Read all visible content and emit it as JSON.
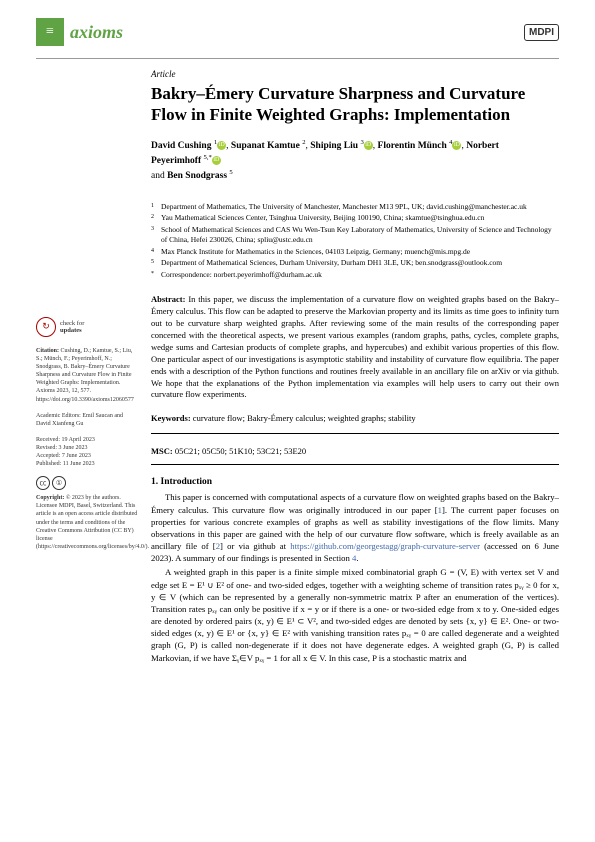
{
  "journal": {
    "name": "axioms",
    "publisher_logo": "MDPI"
  },
  "article_type": "Article",
  "title": "Bakry–Émery Curvature Sharpness and Curvature Flow in Finite Weighted Graphs: Implementation",
  "authors": [
    {
      "name": "David Cushing",
      "sup": "1",
      "orcid": true
    },
    {
      "name": "Supanat Kamtue",
      "sup": "2",
      "orcid": false
    },
    {
      "name": "Shiping Liu",
      "sup": "3",
      "orcid": true
    },
    {
      "name": "Florentin Münch",
      "sup": "4",
      "orcid": true
    },
    {
      "name": "Norbert Peyerimhoff",
      "sup": "5,*",
      "orcid": true
    },
    {
      "name": "Ben Snodgrass",
      "sup": "5",
      "orcid": false
    }
  ],
  "author_and": "and",
  "affiliations": [
    {
      "num": "1",
      "text": "Department of Mathematics, The University of Manchester, Manchester M13 9PL, UK; david.cushing@manchester.ac.uk"
    },
    {
      "num": "2",
      "text": "Yau Mathematical Sciences Center, Tsinghua University, Beijing 100190, China; skamtue@tsinghua.edu.cn"
    },
    {
      "num": "3",
      "text": "School of Mathematical Sciences and CAS Wu Wen-Tsun Key Laboratory of Mathematics, University of Science and Technology of China, Hefei 230026, China; spliu@ustc.edu.cn"
    },
    {
      "num": "4",
      "text": "Max Planck Institute for Mathematics in the Sciences, 04103 Leipzig, Germany; muench@mis.mpg.de"
    },
    {
      "num": "5",
      "text": "Department of Mathematical Sciences, Durham University, Durham DH1 3LE, UK; ben.snodgrass@outlook.com"
    },
    {
      "num": "*",
      "text": "Correspondence: norbert.peyerimhoff@durham.ac.uk"
    }
  ],
  "abstract": {
    "label": "Abstract:",
    "text": "In this paper, we discuss the implementation of a curvature flow on weighted graphs based on the Bakry–Émery calculus. This flow can be adapted to preserve the Markovian property and its limits as time goes to infinity turn out to be curvature sharp weighted graphs. After reviewing some of the main results of the corresponding paper concerned with the theoretical aspects, we present various examples (random graphs, paths, cycles, complete graphs, wedge sums and Cartesian products of complete graphs, and hypercubes) and exhibit various properties of this flow. One particular aspect of our investigations is asymptotic stability and instability of curvature flow equilibria. The paper ends with a description of the Python functions and routines freely available in an ancillary file on arXiv or via github. We hope that the explanations of the Python implementation via examples will help users to carry out their own curvature flow experiments."
  },
  "keywords": {
    "label": "Keywords:",
    "text": "curvature flow; Bakry-Émery calculus; weighted graphs; stability"
  },
  "msc": {
    "label": "MSC:",
    "text": "05C21; 05C50; 51K10; 53C21; 53E20"
  },
  "section1": {
    "title": "1. Introduction",
    "para1_a": "This paper is concerned with computational aspects of a curvature flow on weighted graphs based on the Bakry–Émery calculus. This curvature flow was originally introduced in our paper [",
    "para1_ref1": "1",
    "para1_b": "]. The current paper focuses on properties for various concrete examples of graphs as well as stability investigations of the flow limits. Many observations in this paper are gained with the help of our curvature flow software, which is freely available as an ancillary file of [",
    "para1_ref2": "2",
    "para1_c": "] or via github at ",
    "para1_link": "https://github.com/georgestagg/graph-curvature-server",
    "para1_d": " (accessed on 6 June 2023). A summary of our findings is presented in Section ",
    "para1_ref3": "4",
    "para1_e": ".",
    "para2": "A weighted graph in this paper is a finite simple mixed combinatorial graph G = (V, E) with vertex set V and edge set E = E¹ ∪ E² of one- and two-sided edges, together with a weighting scheme of transition rates pₓᵧ ≥ 0 for x, y ∈ V (which can be represented by a generally non-symmetric matrix P after an enumeration of the vertices). Transition rates pₓᵧ can only be positive if x = y or if there is a one- or two-sided edge from x to y. One-sided edges are denoted by ordered pairs (x, y) ∈ E¹ ⊂ V², and two-sided edges are denoted by sets {x, y} ∈ E². One- or two-sided edges (x, y) ∈ E¹ or {x, y} ∈ E² with vanishing transition rates pₓᵧ = 0 are called degenerate and a weighted graph (G, P) is called non-degenerate if it does not have degenerate edges. A weighted graph (G, P) is called Markovian, if we have Σᵧ∈V pₓᵧ = 1 for all x ∈ V. In this case, P is a stochastic matrix and"
  },
  "sidebar": {
    "check_updates": {
      "line1": "check for",
      "line2": "updates"
    },
    "citation_label": "Citation:",
    "citation": "Cushing, D.; Kamtue, S.; Liu, S.; Münch, F.; Peyerimhoff, N.; Snodgrass, B. Bakry–Émery Curvature Sharpness and Curvature Flow in Finite Weighted Graphs: Implementation. Axioms 2023, 12, 577. https://doi.org/10.3390/axioms12060577",
    "editors_label": "Academic Editors:",
    "editors": "Emil Saucan and David Xianfeng Gu",
    "received": "Received: 19 April 2023",
    "revised": "Revised: 3 June 2023",
    "accepted": "Accepted: 7 June 2023",
    "published": "Published: 11 June 2023",
    "copyright_label": "Copyright:",
    "copyright": "© 2023 by the authors. Licensee MDPI, Basel, Switzerland. This article is an open access article distributed under the terms and conditions of the Creative Commons Attribution (CC BY) license (https://creativecommons.org/licenses/by/4.0/)."
  }
}
